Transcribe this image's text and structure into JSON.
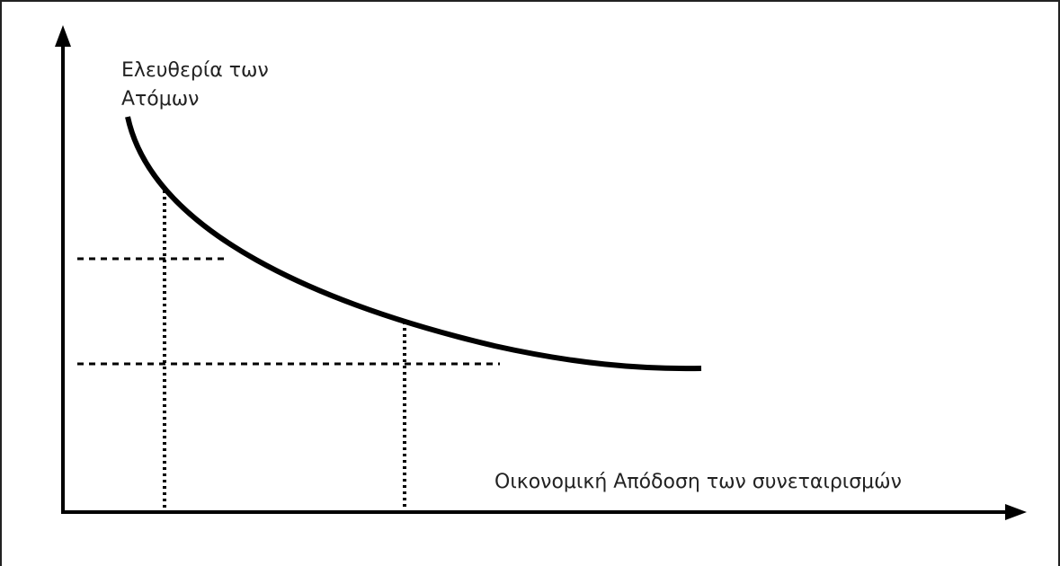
{
  "diagram": {
    "y_axis_label_line1": "Ελευθερία των",
    "y_axis_label_line2": "Ατόμων",
    "x_axis_label": "Οικονομική Απόδοση των συνεταιρισμών",
    "line_color": "#000000",
    "text_color": "#222222"
  }
}
